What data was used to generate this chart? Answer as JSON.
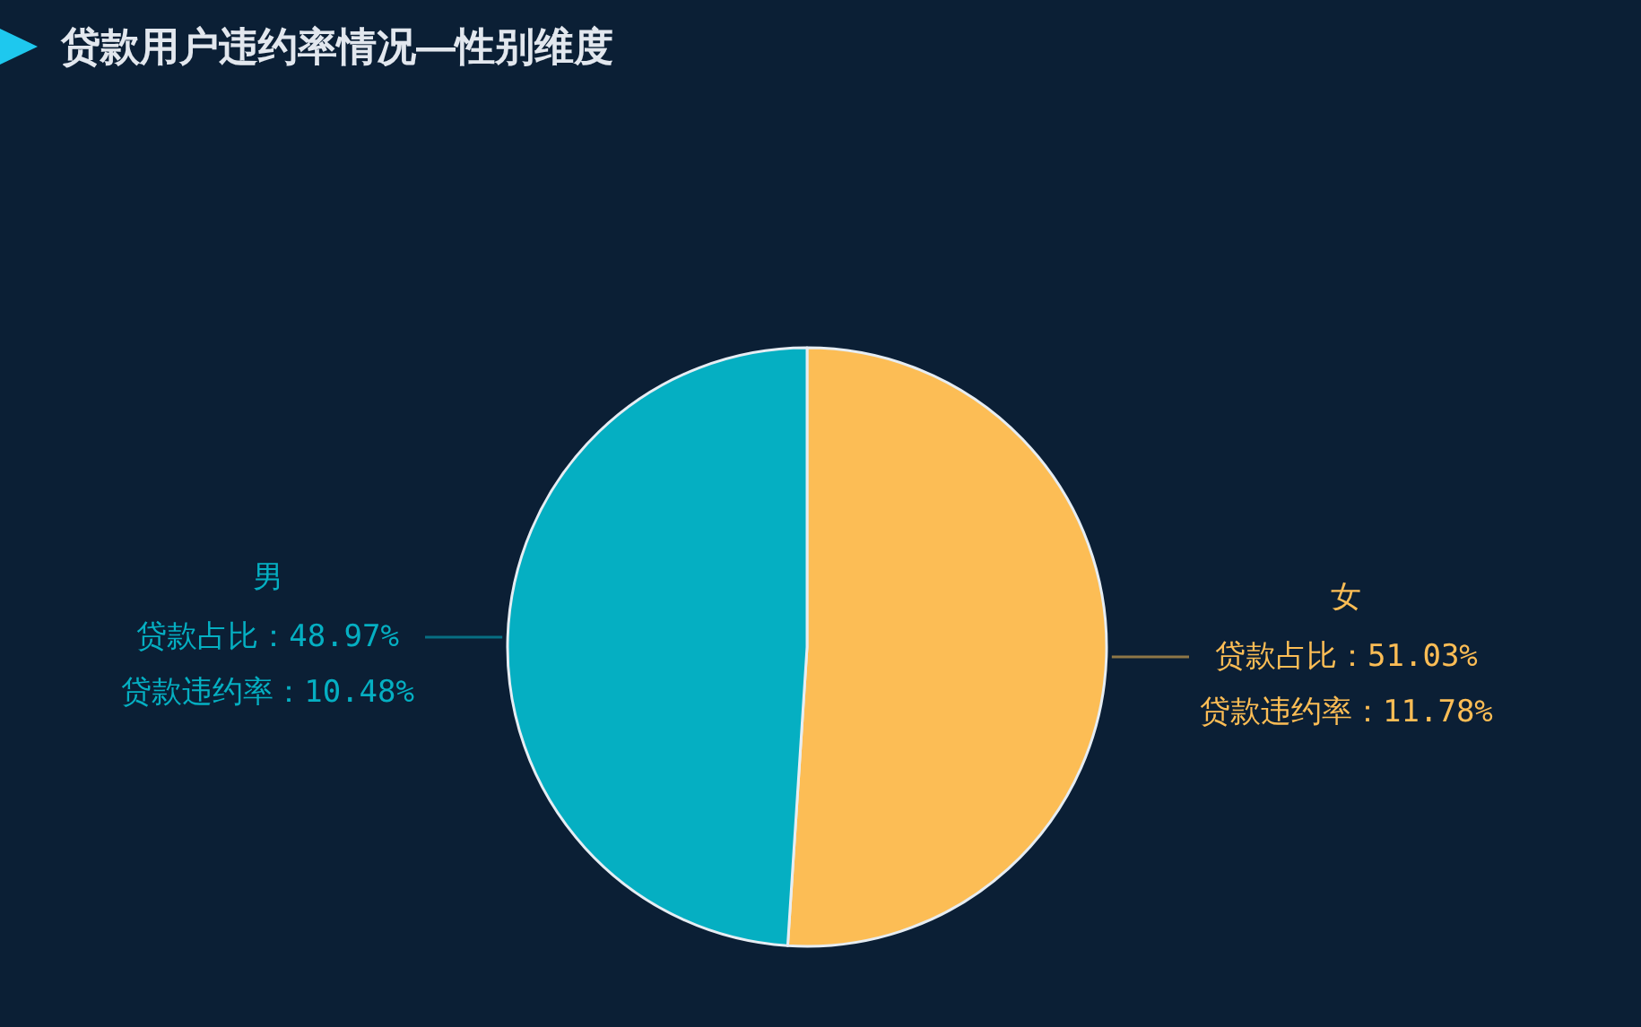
{
  "chart_data": {
    "type": "pie",
    "title": "贷款用户违约率情况—性别维度",
    "categories": [
      "女",
      "男"
    ],
    "values": [
      51.03,
      48.97
    ],
    "colors": [
      "#fcbd55",
      "#05afc2"
    ],
    "value_labels": [
      "贷款占比：51.03%\n贷款违约率：11.78%",
      "贷款占比：48.97%\n贷款违约率：10.48%"
    ]
  }
}
